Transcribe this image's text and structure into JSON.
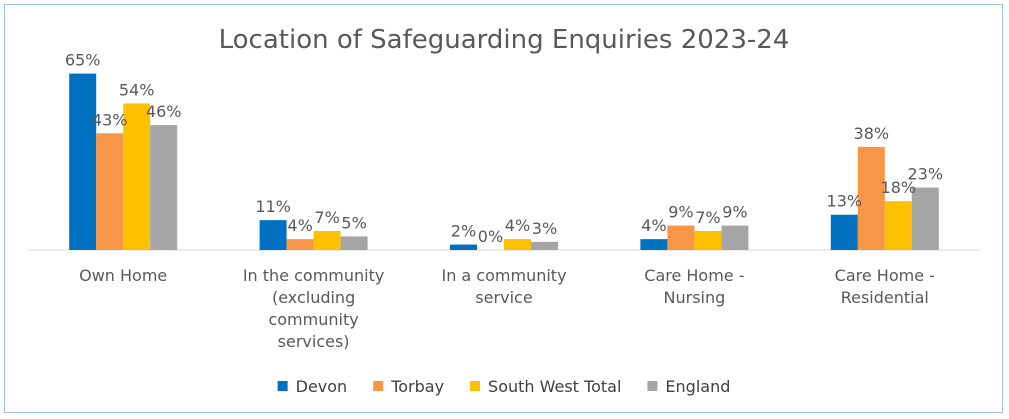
{
  "chart_data": {
    "type": "bar",
    "title": "Location of Safeguarding Enquiries 2023-24",
    "xlabel": "",
    "ylabel": "",
    "ylim": [
      0,
      70
    ],
    "grid": false,
    "legend_position": "bottom",
    "categories": [
      [
        "Own Home"
      ],
      [
        "In the community",
        "(excluding",
        "community",
        "services)"
      ],
      [
        "In a community",
        "service"
      ],
      [
        "Care Home -",
        "Nursing"
      ],
      [
        "Care Home -",
        "Residential"
      ]
    ],
    "series": [
      {
        "name": "Devon",
        "color": "#0070C0",
        "values": [
          65,
          11,
          2,
          4,
          13
        ],
        "labels": [
          "65%",
          "11%",
          "2%",
          "4%",
          "13%"
        ]
      },
      {
        "name": "Torbay",
        "color": "#F79646",
        "values": [
          43,
          4,
          0,
          9,
          38
        ],
        "labels": [
          "43%",
          "4%",
          "0%",
          "9%",
          "38%"
        ]
      },
      {
        "name": "South West Total",
        "color": "#FFC000",
        "values": [
          54,
          7,
          4,
          7,
          18
        ],
        "labels": [
          "54%",
          "7%",
          "4%",
          "7%",
          "18%"
        ]
      },
      {
        "name": "England",
        "color": "#A5A5A5",
        "values": [
          46,
          5,
          3,
          9,
          23
        ],
        "labels": [
          "46%",
          "5%",
          "3%",
          "9%",
          "23%"
        ]
      }
    ]
  }
}
